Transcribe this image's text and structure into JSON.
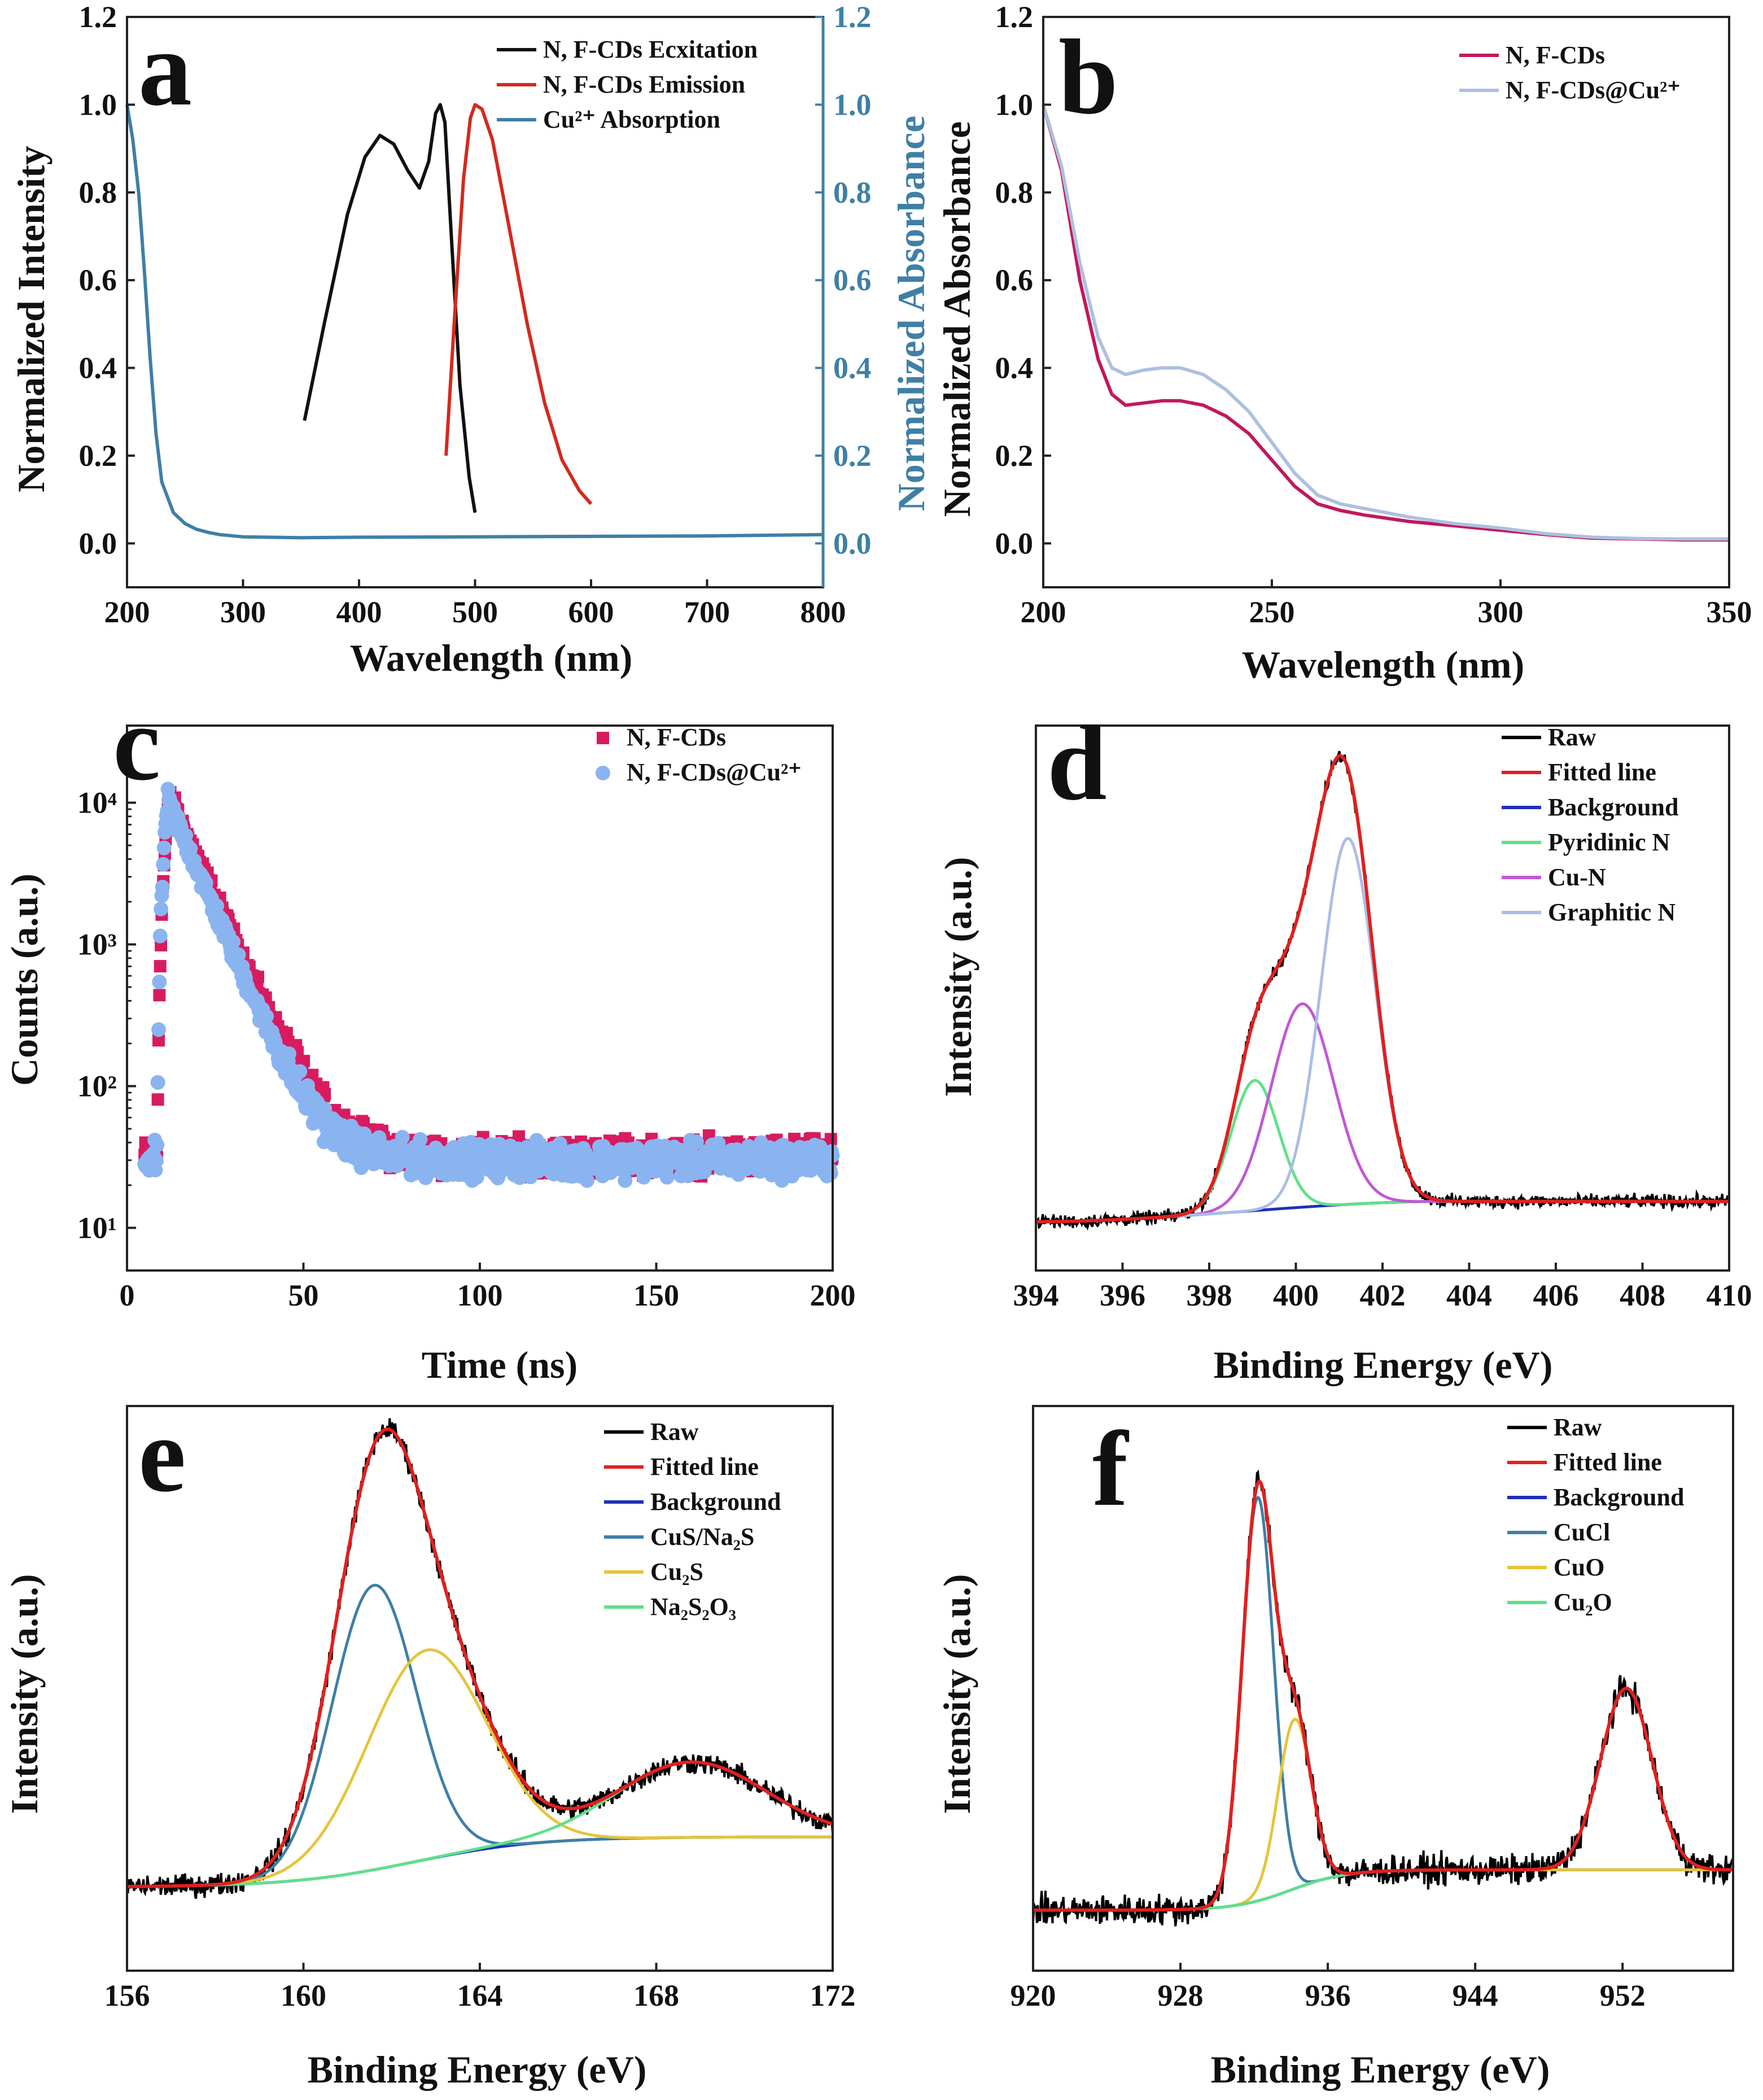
{
  "figure": {
    "panels": [
      "a",
      "b",
      "c",
      "d",
      "e",
      "f"
    ]
  },
  "chart_data": [
    {
      "id": "a",
      "panel_label": "a",
      "type": "line",
      "xlabel": "Wavelength (nm)",
      "ylabel": "Normalized Intensity",
      "y2label": "Normalized Absorbance",
      "xlim": [
        200,
        800
      ],
      "ylim": [
        -0.1,
        1.2
      ],
      "y2lim": [
        -0.1,
        1.2
      ],
      "xticks": [
        200,
        300,
        400,
        500,
        600,
        700,
        800
      ],
      "yticks": [
        0.0,
        0.2,
        0.4,
        0.6,
        0.8,
        1.0,
        1.2
      ],
      "y2ticks": [
        0.0,
        0.2,
        0.4,
        0.6,
        0.8,
        1.0,
        1.2
      ],
      "tick_decimals": 1,
      "legend_position": "top-right",
      "series": [
        {
          "name": "N, F-CDs Ecxitation",
          "color": "#111111",
          "x": [
            353,
            370,
            390,
            405,
            418,
            430,
            442,
            452,
            460,
            466,
            470,
            474,
            480,
            487,
            495,
            500
          ],
          "y": [
            0.28,
            0.5,
            0.75,
            0.88,
            0.93,
            0.91,
            0.85,
            0.81,
            0.87,
            0.98,
            1.0,
            0.96,
            0.68,
            0.36,
            0.15,
            0.07
          ]
        },
        {
          "name": "N, F-CDs Emission",
          "color": "#d32a1e",
          "x": [
            475,
            482,
            490,
            496,
            500,
            506,
            515,
            528,
            545,
            560,
            575,
            590,
            600
          ],
          "y": [
            0.2,
            0.5,
            0.83,
            0.97,
            1.0,
            0.99,
            0.92,
            0.74,
            0.5,
            0.32,
            0.19,
            0.12,
            0.09
          ]
        },
        {
          "name": "Cu²⁺ Absorption",
          "color": "#3f7fa6",
          "x": [
            200,
            205,
            210,
            215,
            220,
            225,
            230,
            240,
            250,
            260,
            270,
            280,
            300,
            350,
            400,
            500,
            600,
            700,
            800
          ],
          "y": [
            1.0,
            0.92,
            0.8,
            0.62,
            0.42,
            0.25,
            0.14,
            0.07,
            0.045,
            0.032,
            0.025,
            0.02,
            0.015,
            0.013,
            0.014,
            0.015,
            0.016,
            0.017,
            0.02
          ]
        }
      ]
    },
    {
      "id": "b",
      "panel_label": "b",
      "type": "line",
      "xlabel": "Wavelength (nm)",
      "ylabel": "Normalized Absorbance",
      "xlim": [
        200,
        350
      ],
      "ylim": [
        -0.1,
        1.2
      ],
      "xticks": [
        200,
        250,
        300,
        350
      ],
      "yticks": [
        0.0,
        0.2,
        0.4,
        0.6,
        0.8,
        1.0,
        1.2
      ],
      "tick_decimals": 1,
      "legend_position": "top-right",
      "series": [
        {
          "name": "N, F-CDs",
          "color": "#c2185b",
          "x": [
            200,
            204,
            208,
            212,
            215,
            218,
            222,
            226,
            230,
            235,
            240,
            245,
            250,
            255,
            260,
            265,
            270,
            280,
            290,
            300,
            310,
            320,
            330,
            340,
            350
          ],
          "y": [
            1.0,
            0.85,
            0.6,
            0.42,
            0.34,
            0.315,
            0.32,
            0.325,
            0.325,
            0.315,
            0.29,
            0.25,
            0.19,
            0.13,
            0.09,
            0.075,
            0.065,
            0.05,
            0.04,
            0.03,
            0.02,
            0.012,
            0.01,
            0.008,
            0.008
          ]
        },
        {
          "name": "N, F-CDs@Cu²⁺",
          "color": "#aebfe0",
          "x": [
            200,
            204,
            208,
            212,
            215,
            218,
            222,
            226,
            230,
            235,
            240,
            245,
            250,
            255,
            260,
            265,
            270,
            280,
            290,
            300,
            310,
            320,
            330,
            340,
            350
          ],
          "y": [
            1.0,
            0.86,
            0.64,
            0.47,
            0.4,
            0.385,
            0.395,
            0.4,
            0.4,
            0.385,
            0.35,
            0.3,
            0.23,
            0.16,
            0.11,
            0.09,
            0.08,
            0.06,
            0.045,
            0.035,
            0.022,
            0.014,
            0.011,
            0.01,
            0.01
          ]
        }
      ]
    },
    {
      "id": "c",
      "panel_label": "c",
      "type": "scatter",
      "yscale": "log",
      "xlabel": "Time (ns)",
      "ylabel": "Counts (a.u.)",
      "xlim": [
        0,
        200
      ],
      "ylim": [
        5,
        35000
      ],
      "xticks": [
        0,
        50,
        100,
        150,
        200
      ],
      "yticks": [
        10,
        100,
        1000,
        10000
      ],
      "ytick_labels": [
        "10¹",
        "10²",
        "10³",
        "10⁴"
      ],
      "legend_position": "top-right",
      "series": [
        {
          "name": "N, F-CDs",
          "color": "#d81b60",
          "marker": "square",
          "decay": {
            "t0": 5,
            "rise_start": 8.5,
            "peak_t": 12,
            "peak": 11000,
            "tau": 7.8,
            "baseline": 32,
            "t_end": 200
          }
        },
        {
          "name": "N, F-CDs@Cu²⁺",
          "color": "#8ab4f0",
          "marker": "circle",
          "decay": {
            "t0": 5,
            "rise_start": 8.5,
            "peak_t": 11.5,
            "peak": 10500,
            "tau": 7.4,
            "baseline": 30,
            "t_end": 200
          }
        }
      ]
    },
    {
      "id": "d",
      "panel_label": "d",
      "type": "line",
      "xlabel": "Binding Energy (eV)",
      "ylabel": "Intensity (a.u.)",
      "xlim": [
        394,
        410
      ],
      "ylim": [
        -0.12,
        1.22
      ],
      "xticks": [
        394,
        396,
        398,
        400,
        402,
        404,
        406,
        408,
        410
      ],
      "show_yticks": false,
      "legend_position": "top-right",
      "background": {
        "x1": 394,
        "y1": 0.0,
        "x2": 403.5,
        "y2": 0.05,
        "x_end": 410
      },
      "components": [
        {
          "name": "Pyridinic N",
          "color": "#5fe08a",
          "center": 399.05,
          "height": 0.32,
          "width": 0.55
        },
        {
          "name": "Cu-N",
          "color": "#c257d6",
          "center": 400.15,
          "height": 0.5,
          "width": 0.72
        },
        {
          "name": "Graphitic N",
          "color": "#a9bde6",
          "center": 401.2,
          "height": 0.9,
          "width": 0.62
        }
      ],
      "raw_noise": 0.011,
      "series": [
        {
          "name": "Raw",
          "color": "#000000"
        },
        {
          "name": "Fitted line",
          "color": "#e02020"
        },
        {
          "name": "Background",
          "color": "#1f2fb8"
        },
        {
          "name": "Pyridinic N",
          "color": "#5fe08a"
        },
        {
          "name": "Cu-N",
          "color": "#c257d6"
        },
        {
          "name": "Graphitic N",
          "color": "#a9bde6"
        }
      ]
    },
    {
      "id": "e",
      "panel_label": "e",
      "type": "line",
      "xlabel": "Binding Energy (eV)",
      "ylabel": "Intensity (a.u.)",
      "xlim": [
        156,
        172
      ],
      "ylim": [
        -0.2,
        1.15
      ],
      "xticks": [
        156,
        160,
        164,
        168,
        172
      ],
      "show_yticks": false,
      "legend_position": "top-right",
      "background": {
        "x1": 156,
        "y1": 0.0,
        "x2": 172,
        "y2": 0.12,
        "shape": "sigmoid",
        "center": 162.5,
        "spread": 1.4
      },
      "components": [
        {
          "name": "CuS/Na₂S",
          "color": "#3f7fa6",
          "center": 161.6,
          "height": 0.68,
          "width": 0.95
        },
        {
          "name": "Cu₂S",
          "color": "#e6c43a",
          "center": 162.8,
          "height": 0.5,
          "width": 1.35
        },
        {
          "name": "Na₂S₂O₃",
          "color": "#5fe08a",
          "center": 168.8,
          "height": 0.18,
          "width": 1.7
        }
      ],
      "raw_noise": 0.018,
      "series": [
        {
          "name": "Raw",
          "color": "#000000"
        },
        {
          "name": "Fitted line",
          "color": "#e02020"
        },
        {
          "name": "Background",
          "color": "#1f2fb8"
        },
        {
          "name": "CuS/Na₂S",
          "color": "#3f7fa6"
        },
        {
          "name": "Cu₂S",
          "color": "#e6c43a"
        },
        {
          "name": "Na₂S₂O₃",
          "color": "#5fe08a"
        }
      ]
    },
    {
      "id": "f",
      "panel_label": "f",
      "type": "line",
      "xlabel": "Binding Energy (eV)",
      "ylabel": "Intensity (a.u.)",
      "xlim": [
        920,
        958
      ],
      "ylim": [
        -0.15,
        1.25
      ],
      "xticks": [
        920,
        928,
        936,
        944,
        952
      ],
      "show_yticks": false,
      "legend_position": "top-right",
      "background": {
        "x1": 920,
        "y1": 0.0,
        "x2": 958,
        "y2": 0.1,
        "shape": "sigmoid",
        "center": 934,
        "spread": 1.5
      },
      "components": [
        {
          "name": "CuCl",
          "color": "#3f7fa6",
          "center": 932.2,
          "height": 1.0,
          "width": 0.85
        },
        {
          "name": "CuO",
          "color": "#e6c43a",
          "center": 934.2,
          "height": 0.42,
          "width": 0.9
        },
        {
          "name": "Cu₂O",
          "color": "#5fe08a",
          "center": 952.2,
          "height": 0.45,
          "width": 1.4
        }
      ],
      "raw_noise": 0.025,
      "series": [
        {
          "name": "Raw",
          "color": "#000000"
        },
        {
          "name": "Fitted line",
          "color": "#e02020"
        },
        {
          "name": "Background",
          "color": "#1f2fb8"
        },
        {
          "name": "CuCl",
          "color": "#3f7fa6"
        },
        {
          "name": "CuO",
          "color": "#e6c43a"
        },
        {
          "name": "Cu₂O",
          "color": "#5fe08a"
        }
      ]
    }
  ]
}
